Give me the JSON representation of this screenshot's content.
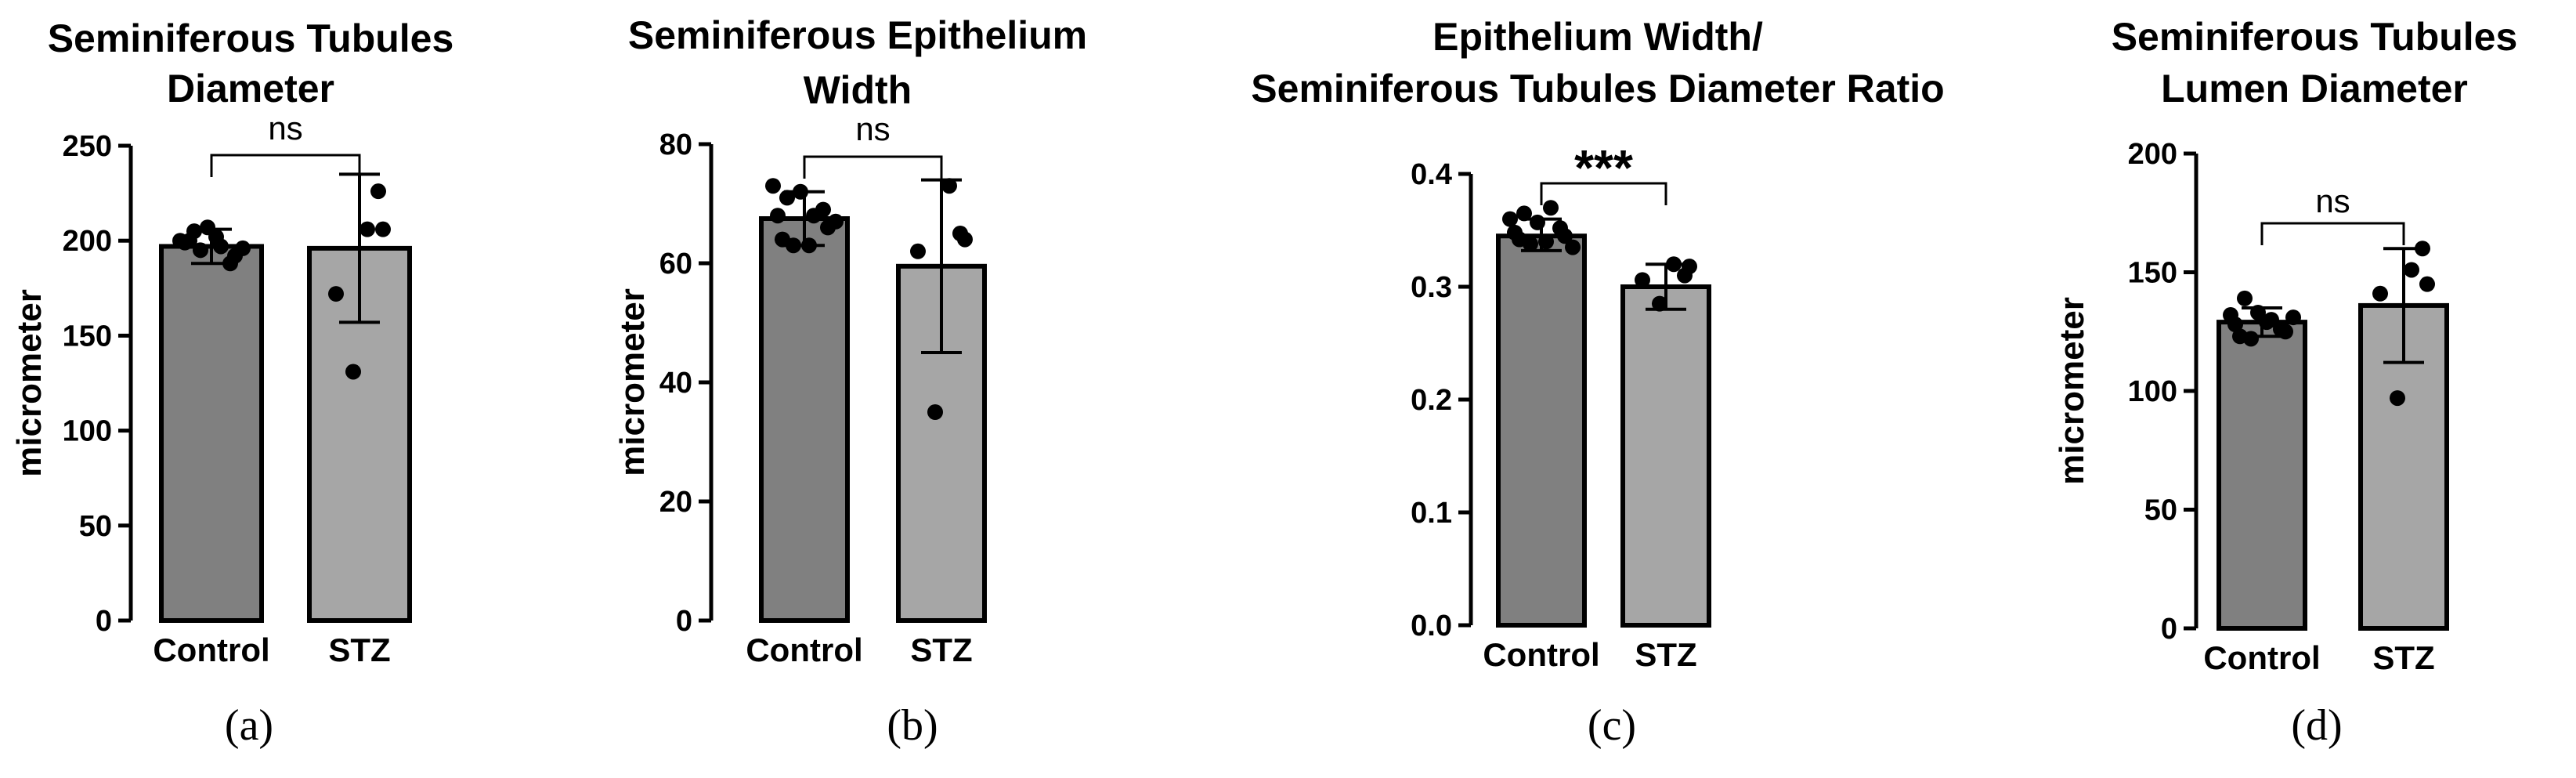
{
  "colors": {
    "control": "#808080",
    "stz": "#a6a6a6",
    "edge": "#000000"
  },
  "chart_data": [
    {
      "type": "bar",
      "panel_label": "(a)",
      "title": [
        "Seminiferous Tubules",
        "Diameter"
      ],
      "xlabel": "",
      "ylabel": "micrometer",
      "ylim": [
        0,
        250
      ],
      "yticks": [
        0,
        50,
        100,
        150,
        200,
        250
      ],
      "categories": [
        "Control",
        "STZ"
      ],
      "values": [
        197,
        196
      ],
      "error": [
        [
          188,
          206
        ],
        [
          157,
          235
        ]
      ],
      "points": [
        [
          200,
          205,
          207,
          197,
          192,
          199,
          195,
          202,
          188,
          196,
          200
        ],
        [
          131,
          172,
          206,
          206,
          226
        ]
      ],
      "significance": "ns"
    },
    {
      "type": "bar",
      "panel_label": "(b)",
      "title": [
        "Seminiferous Epithelium",
        "Width"
      ],
      "xlabel": "",
      "ylabel": "micrometer",
      "ylim": [
        0,
        80
      ],
      "yticks": [
        0,
        20,
        40,
        60,
        80
      ],
      "categories": [
        "Control",
        "STZ"
      ],
      "values": [
        67.5,
        59.5
      ],
      "error": [
        [
          63,
          72
        ],
        [
          45,
          74
        ]
      ],
      "points": [
        [
          73,
          71,
          72,
          68,
          66,
          68,
          63,
          63,
          69,
          67,
          64
        ],
        [
          35,
          62,
          64,
          73,
          65
        ]
      ],
      "significance": "ns"
    },
    {
      "type": "bar",
      "panel_label": "(c)",
      "title": [
        "Epithelium Width/",
        "Seminiferous Tubules Diameter Ratio"
      ],
      "xlabel": "",
      "ylabel": "",
      "ylim": [
        0,
        0.4
      ],
      "yticks": [
        "0.0",
        "0.1",
        "0.2",
        "0.3",
        "0.4"
      ],
      "categories": [
        "Control",
        "STZ"
      ],
      "values": [
        0.345,
        0.3
      ],
      "error": [
        [
          0.332,
          0.36
        ],
        [
          0.28,
          0.32
        ]
      ],
      "points": [
        [
          0.36,
          0.365,
          0.357,
          0.37,
          0.345,
          0.348,
          0.338,
          0.34,
          0.352,
          0.335,
          0.342
        ],
        [
          0.285,
          0.306,
          0.318,
          0.32,
          0.31
        ]
      ],
      "significance": "***"
    },
    {
      "type": "bar",
      "panel_label": "(d)",
      "title": [
        "Seminiferous Tubules",
        "Lumen Diameter"
      ],
      "xlabel": "",
      "ylabel": "micrometer",
      "ylim": [
        0,
        200
      ],
      "yticks": [
        0,
        50,
        100,
        150,
        200
      ],
      "categories": [
        "Control",
        "STZ"
      ],
      "values": [
        129,
        136
      ],
      "error": [
        [
          123,
          135
        ],
        [
          112,
          160
        ]
      ],
      "points": [
        [
          132,
          139,
          133,
          130,
          125,
          128,
          122,
          129,
          126,
          131,
          123
        ],
        [
          97,
          141,
          145,
          151,
          160
        ]
      ],
      "significance": "ns"
    }
  ]
}
